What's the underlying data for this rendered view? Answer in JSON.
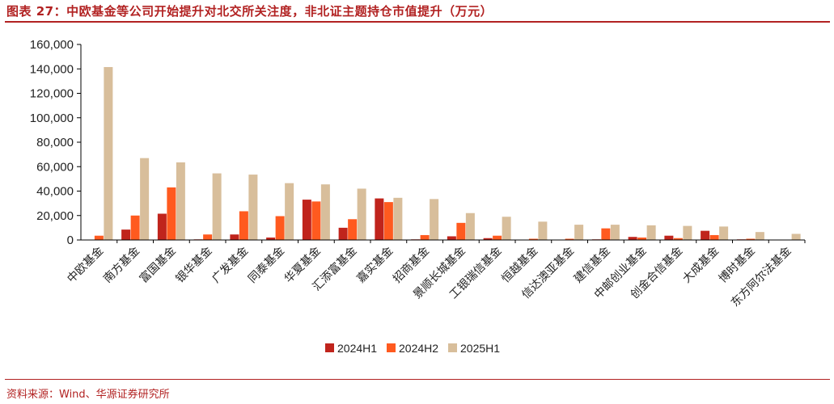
{
  "header": {
    "title": "图表 27：中欧基金等公司开始提升对北交所关注度，非北证主题持仓市值提升（万元）"
  },
  "footer": {
    "source": "资料来源：Wind、华源证券研究所"
  },
  "chart_data": {
    "type": "bar",
    "categories": [
      "中欧基金",
      "南方基金",
      "富国基金",
      "银华基金",
      "广发基金",
      "同泰基金",
      "华夏基金",
      "汇添富基金",
      "嘉实基金",
      "招商基金",
      "景顺长城基金",
      "工银瑞信基金",
      "恒越基金",
      "信达澳亚基金",
      "建信基金",
      "中邮创业基金",
      "创金合信基金",
      "大成基金",
      "博时基金",
      "东方阿尔法基金"
    ],
    "series": [
      {
        "name": "2024H1",
        "color": "#c0241c",
        "values": [
          0,
          8500,
          21500,
          500,
          4500,
          2000,
          33000,
          10000,
          34000,
          500,
          3000,
          1500,
          0,
          0,
          500,
          2500,
          3500,
          7500,
          500,
          0
        ]
      },
      {
        "name": "2024H2",
        "color": "#ff5a1f",
        "values": [
          3500,
          20000,
          43000,
          4500,
          23500,
          19500,
          31500,
          17000,
          31000,
          4000,
          14000,
          3500,
          1000,
          1000,
          9500,
          2000,
          1500,
          4000,
          1000,
          0
        ]
      },
      {
        "name": "2025H1",
        "color": "#d8be9b",
        "values": [
          141500,
          67000,
          63500,
          54500,
          53500,
          46500,
          45500,
          42000,
          34500,
          33500,
          22000,
          19000,
          15000,
          12500,
          12500,
          12000,
          11500,
          11000,
          6500,
          5000
        ]
      }
    ],
    "yticks": [
      "0",
      "20,000",
      "40,000",
      "60,000",
      "80,000",
      "100,000",
      "120,000",
      "140,000",
      "160,000"
    ],
    "ylim": [
      0,
      160000
    ],
    "grid": false,
    "legend_position": "bottom-center",
    "xlabel": "",
    "ylabel": ""
  }
}
